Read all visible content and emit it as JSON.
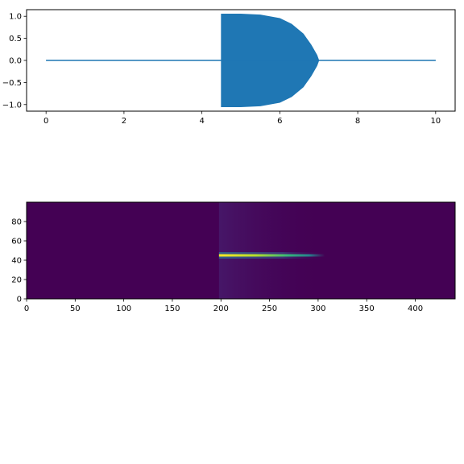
{
  "chart_data": [
    {
      "type": "area",
      "description_role": "waveform",
      "xlim": [
        -0.5,
        10.5
      ],
      "ylim": [
        -1.15,
        1.15
      ],
      "x_ticks": [
        0,
        2,
        4,
        6,
        8,
        10
      ],
      "y_ticks": [
        -1.0,
        -0.5,
        0.0,
        0.5,
        1.0
      ],
      "x_tick_labels": [
        "0",
        "2",
        "4",
        "6",
        "8",
        "10"
      ],
      "y_tick_labels": [
        "−1.0",
        "−0.5",
        "0.0",
        "0.5",
        "1.0"
      ],
      "series": [
        {
          "color": "#1f77b4",
          "x": [
            0,
            4.5,
            4.5,
            5.0,
            5.5,
            6.0,
            6.3,
            6.6,
            6.8,
            6.95,
            7.0,
            10
          ],
          "y_upper": [
            0,
            0,
            1.05,
            1.05,
            1.03,
            0.95,
            0.82,
            0.6,
            0.35,
            0.12,
            0,
            0
          ],
          "y_lower": [
            0,
            0,
            -1.05,
            -1.05,
            -1.03,
            -0.95,
            -0.82,
            -0.6,
            -0.35,
            -0.12,
            0,
            0
          ]
        }
      ],
      "grid": false
    },
    {
      "type": "heatmap",
      "description_role": "spectrogram",
      "colormap": "viridis",
      "xlim": [
        0,
        441
      ],
      "ylim": [
        0,
        100
      ],
      "x_ticks": [
        0,
        50,
        100,
        150,
        200,
        250,
        300,
        350,
        400
      ],
      "y_ticks": [
        0,
        20,
        40,
        60,
        80
      ],
      "x_tick_labels": [
        "0",
        "50",
        "100",
        "150",
        "200",
        "250",
        "300",
        "350",
        "400"
      ],
      "y_tick_labels": [
        "0",
        "20",
        "40",
        "60",
        "80"
      ],
      "band": {
        "x_start": 198,
        "x_end": 307,
        "y": 45,
        "peak_intensity": 1.0
      },
      "background_color": "#440154",
      "grid": false
    }
  ]
}
